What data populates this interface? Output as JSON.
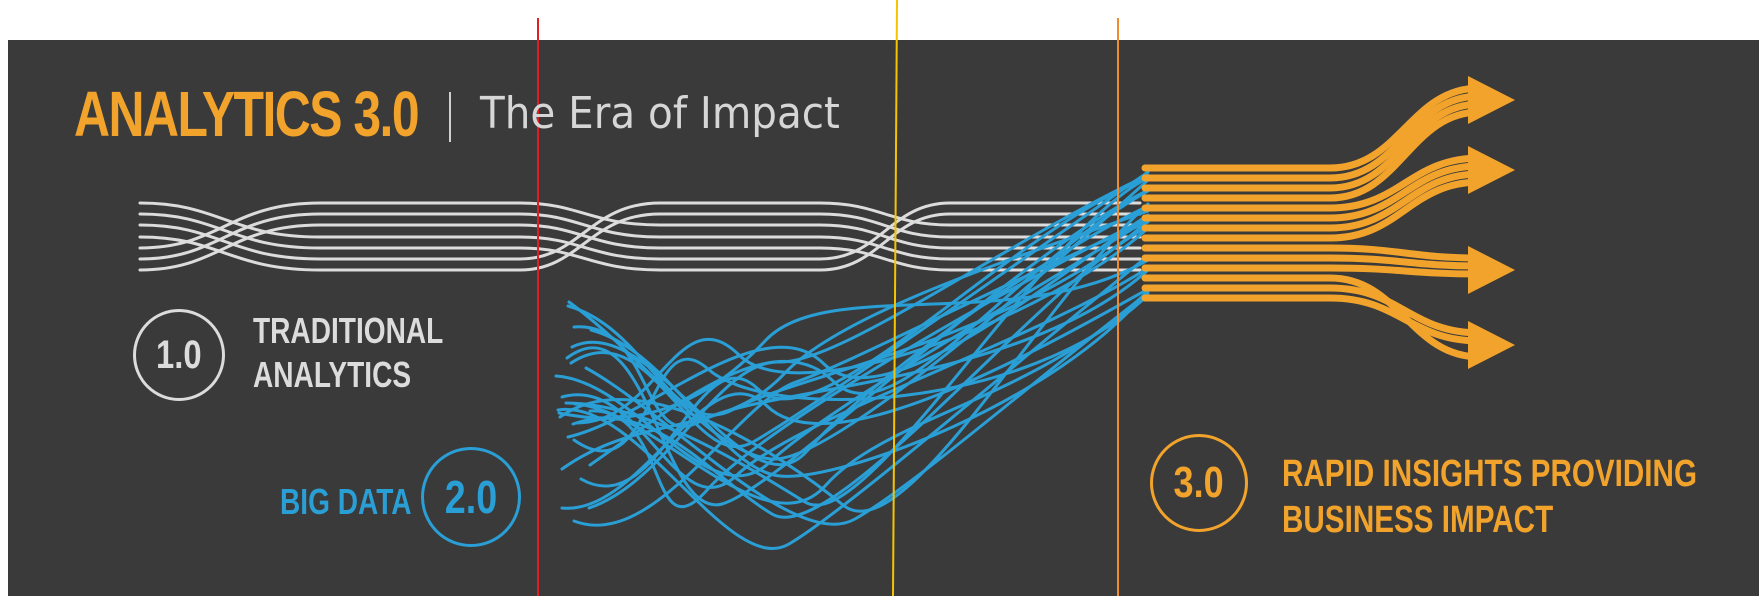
{
  "title": {
    "main": "ANALYTICS 3.0",
    "sub": "The Era of Impact"
  },
  "stages": [
    {
      "number": "1.0",
      "label_line1": "TRADITIONAL",
      "label_line2": "ANALYTICS"
    },
    {
      "number": "2.0",
      "label": "BIG DATA"
    },
    {
      "number": "3.0",
      "label_line1": "RAPID INSIGHTS PROVIDING",
      "label_line2": "BUSINESS IMPACT"
    }
  ],
  "colors": {
    "background": "#3a3a3b",
    "traditional": "#dcdcdc",
    "big_data": "#2a9fd6",
    "impact": "#f2a32b",
    "marker_red": "#e02020",
    "marker_yellow": "#f5c400",
    "marker_orange": "#f08c30"
  },
  "icons": {
    "arrow": "curved-arrow-icon",
    "badge": "circle-badge-icon"
  }
}
